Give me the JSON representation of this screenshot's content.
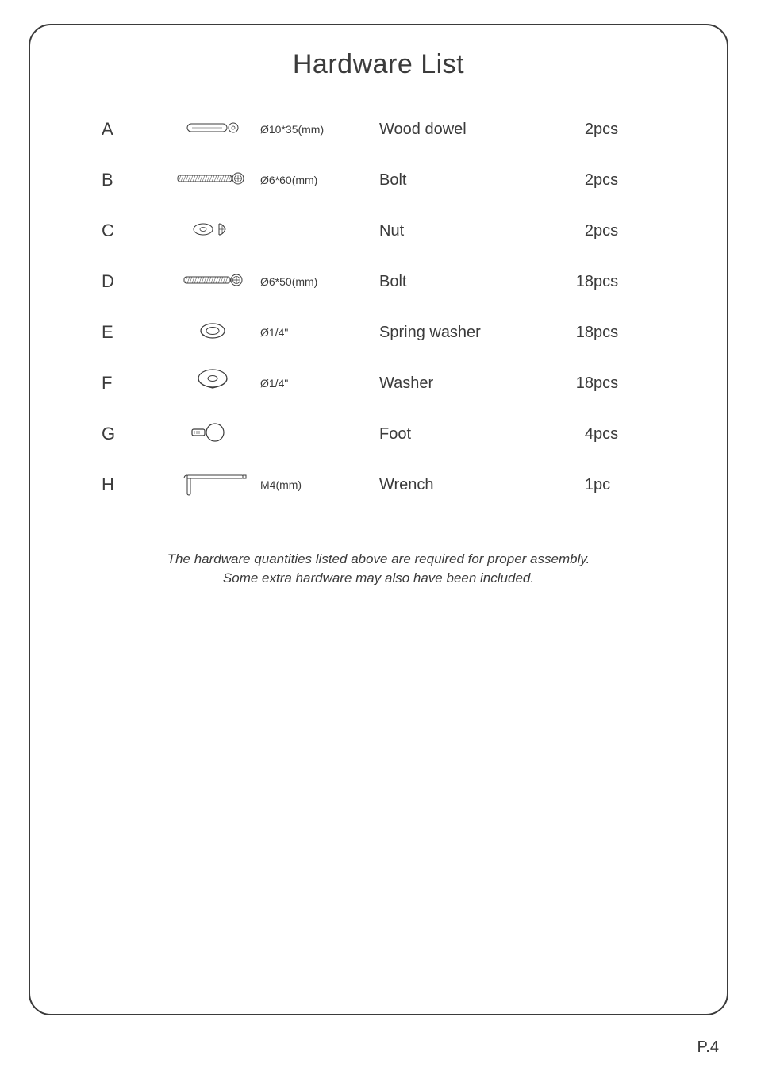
{
  "title": "Hardware List",
  "note_line1": "The hardware quantities listed above are required for proper assembly.",
  "note_line2": "Some extra hardware may also have been included.",
  "page_number": "P.4",
  "stroke_color": "#3b3b3b",
  "items": [
    {
      "letter": "A",
      "spec": "Ø10*35(mm)",
      "name": "Wood dowel",
      "qty": "2",
      "unit": "pcs",
      "icon": "dowel"
    },
    {
      "letter": "B",
      "spec": "Ø6*60(mm)",
      "name": "Bolt",
      "qty": "2",
      "unit": "pcs",
      "icon": "bolt_long"
    },
    {
      "letter": "C",
      "spec": "",
      "name": "Nut",
      "qty": "2",
      "unit": "pcs",
      "icon": "nut"
    },
    {
      "letter": "D",
      "spec": "Ø6*50(mm)",
      "name": "Bolt",
      "qty": "18",
      "unit": "pcs",
      "icon": "bolt_short"
    },
    {
      "letter": "E",
      "spec": "Ø1/4\"",
      "name": "Spring washer",
      "qty": "18",
      "unit": "pcs",
      "icon": "spring_washer"
    },
    {
      "letter": "F",
      "spec": "Ø1/4\"",
      "name": "Washer",
      "qty": "18",
      "unit": "pcs",
      "icon": "washer"
    },
    {
      "letter": "G",
      "spec": "",
      "name": "Foot",
      "qty": "4",
      "unit": "pcs",
      "icon": "foot"
    },
    {
      "letter": "H",
      "spec": "M4(mm)",
      "name": "Wrench",
      "qty": "1",
      "unit": "pc",
      "icon": "wrench"
    }
  ]
}
